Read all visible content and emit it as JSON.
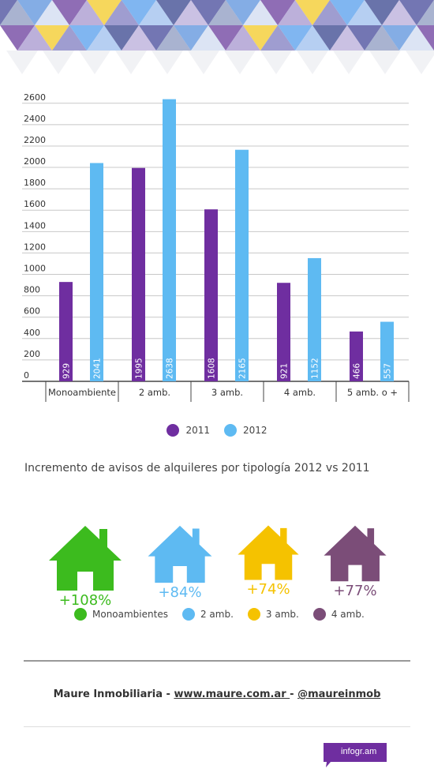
{
  "chart_data": {
    "type": "bar",
    "title": "",
    "xlabel": "",
    "ylabel": "",
    "categories": [
      "Monoambiente",
      "2 amb.",
      "3 amb.",
      "4 amb.",
      "5 amb. o +"
    ],
    "series": [
      {
        "name": "2011",
        "color": "#6f2ea0",
        "values": [
          929,
          1995,
          1608,
          921,
          466
        ]
      },
      {
        "name": "2012",
        "color": "#5ebaf2",
        "values": [
          2041,
          2638,
          2165,
          1152,
          557
        ]
      }
    ],
    "yticks": [
      0,
      200,
      400,
      600,
      800,
      1000,
      1200,
      1400,
      1600,
      1800,
      2000,
      2200,
      2400,
      2600
    ],
    "ylim": [
      0,
      2650
    ],
    "grid": true,
    "legend_position": "bottom-center"
  },
  "subtitle": "Incremento de avisos de alquileres por tipología 2012 vs 2011",
  "houses": [
    {
      "label": "Monoambientes",
      "pct": "+108%",
      "color": "#3cbb1e"
    },
    {
      "label": "2 amb.",
      "pct": "+84%",
      "color": "#5ebaf2"
    },
    {
      "label": "3 amb.",
      "pct": "+74%",
      "color": "#f5c200"
    },
    {
      "label": "4 amb.",
      "pct": "+77%",
      "color": "#7b4d78"
    }
  ],
  "footer": {
    "company": "Maure Inmobiliaria - ",
    "website": "www.maure.com.ar ",
    "separator": "- ",
    "handle": "@maureinmob"
  },
  "badge": {
    "label": "infogr.am",
    "color": "#6f2ea0"
  }
}
